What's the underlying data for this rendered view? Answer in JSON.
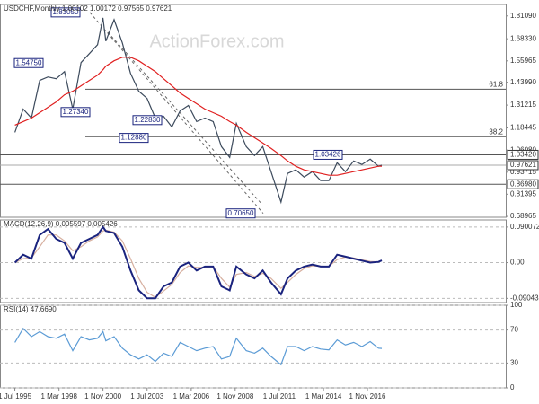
{
  "chart_data": [
    {
      "type": "line",
      "title": "USDCHF,Monthly  1.00102 1.00172 0.97565 0.97621",
      "watermark": "ActionForex.com",
      "x": [
        1995.5,
        1996,
        1996.5,
        1997,
        1997.5,
        1998,
        1998.5,
        1999,
        1999.5,
        2000,
        2000.5,
        2000.83,
        2001,
        2001.5,
        2002,
        2002.5,
        2003,
        2003.5,
        2004,
        2004.5,
        2005,
        2005.5,
        2006,
        2006.5,
        2007,
        2007.5,
        2008,
        2008.5,
        2008.9,
        2009.5,
        2010,
        2010.5,
        2011,
        2011.6,
        2012,
        2012.5,
        2013,
        2013.5,
        2014,
        2014.5,
        2015,
        2015.5,
        2016,
        2016.5,
        2017,
        2017.5,
        2017.7
      ],
      "xlim": [
        1994.6,
        2025.2
      ],
      "series": [
        {
          "color": "#3c4a5c",
          "values": [
            1.16,
            1.29,
            1.24,
            1.45,
            1.47,
            1.46,
            1.5,
            1.29,
            1.55,
            1.6,
            1.65,
            1.8,
            1.67,
            1.79,
            1.66,
            1.49,
            1.39,
            1.35,
            1.24,
            1.25,
            1.19,
            1.28,
            1.31,
            1.22,
            1.24,
            1.22,
            1.08,
            1.02,
            1.21,
            1.08,
            1.03,
            1.08,
            0.94,
            0.77,
            0.93,
            0.95,
            0.91,
            0.94,
            0.89,
            0.89,
            0.99,
            0.94,
            1.0,
            0.98,
            1.01,
            0.97,
            0.97621
          ]
        },
        {
          "color": "#e02020",
          "values": [
            1.2,
            1.22,
            1.24,
            1.27,
            1.3,
            1.33,
            1.37,
            1.39,
            1.42,
            1.45,
            1.48,
            1.51,
            1.53,
            1.56,
            1.58,
            1.58,
            1.56,
            1.53,
            1.5,
            1.46,
            1.42,
            1.38,
            1.35,
            1.32,
            1.29,
            1.27,
            1.25,
            1.22,
            1.2,
            1.16,
            1.13,
            1.1,
            1.07,
            1.03,
            1.0,
            0.97,
            0.95,
            0.94,
            0.93,
            0.92,
            0.92,
            0.93,
            0.94,
            0.95,
            0.96,
            0.97,
            0.97
          ]
        }
      ],
      "ylim": [
        0.685,
        1.875
      ],
      "yticks": [
        {
          "value": 1.8109,
          "label": "1.81090"
        },
        {
          "value": 1.6833,
          "label": "1.68330"
        },
        {
          "value": 1.55965,
          "label": "1.55965"
        },
        {
          "value": 1.4399,
          "label": "1.43990"
        },
        {
          "value": 1.31215,
          "label": "1.31215"
        },
        {
          "value": 1.18445,
          "label": "1.18445"
        },
        {
          "value": 1.0608,
          "label": "1.06080"
        },
        0.93715,
        0.81395,
        0.68965
      ],
      "levels": [
        {
          "value": 1.4011,
          "label": "61.8"
        },
        {
          "value": 1.1359,
          "label": "38.2"
        },
        {
          "value": 1.0342,
          "label": "1.03420"
        },
        {
          "value": 0.97621,
          "label": "0.97621"
        },
        {
          "value": 0.8698,
          "label": "0.86980"
        }
      ],
      "annotations": [
        {
          "value": 1.8305,
          "label": "1.83050"
        },
        {
          "value": 1.5475,
          "label": "1.54750"
        },
        {
          "value": 1.2734,
          "label": "1.27340"
        },
        {
          "value": 1.2283,
          "label": "1.22830"
        },
        {
          "value": 1.1288,
          "label": "1.12880"
        },
        {
          "value": 0.7065,
          "label": "0.70650"
        },
        {
          "value": 1.03426,
          "label": "1.03426"
        }
      ]
    },
    {
      "type": "line",
      "title": "MACD(12,26,9) 0.005597 0.005426",
      "x": [
        1995.5,
        1996,
        1996.5,
        1997,
        1997.5,
        1998,
        1998.5,
        1999,
        1999.5,
        2000,
        2000.5,
        2000.83,
        2001,
        2001.5,
        2002,
        2002.5,
        2003,
        2003.5,
        2004,
        2004.5,
        2005,
        2005.5,
        2006,
        2006.5,
        2007,
        2007.5,
        2008,
        2008.5,
        2008.9,
        2009.5,
        2010,
        2010.5,
        2011,
        2011.6,
        2012,
        2012.5,
        2013,
        2013.5,
        2014,
        2014.5,
        2015,
        2015.5,
        2016,
        2016.5,
        2017,
        2017.5,
        2017.7
      ],
      "xlim": [
        1994.6,
        2025.2
      ],
      "series": [
        {
          "color": "#d7b0a0",
          "values": [
            0.0,
            0.01,
            0.012,
            0.04,
            0.07,
            0.07,
            0.055,
            0.03,
            0.04,
            0.055,
            0.065,
            0.08,
            0.082,
            0.077,
            0.055,
            0.01,
            -0.04,
            -0.075,
            -0.088,
            -0.072,
            -0.055,
            -0.025,
            -0.008,
            -0.012,
            -0.012,
            -0.01,
            -0.04,
            -0.062,
            -0.03,
            -0.025,
            -0.035,
            -0.027,
            -0.04,
            -0.065,
            -0.05,
            -0.03,
            -0.015,
            -0.008,
            -0.009,
            -0.01,
            0.008,
            0.014,
            0.012,
            0.007,
            0.003,
            0.002,
            0.005426
          ]
        },
        {
          "color": "#1a237e",
          "values": [
            0.0,
            0.02,
            0.01,
            0.07,
            0.085,
            0.06,
            0.05,
            0.01,
            0.05,
            0.06,
            0.07,
            0.09,
            0.08,
            0.075,
            0.04,
            -0.02,
            -0.07,
            -0.09,
            -0.09,
            -0.06,
            -0.05,
            -0.01,
            0.0,
            -0.02,
            -0.01,
            -0.01,
            -0.06,
            -0.07,
            -0.01,
            -0.03,
            -0.04,
            -0.02,
            -0.05,
            -0.08,
            -0.04,
            -0.02,
            -0.01,
            -0.005,
            -0.01,
            -0.01,
            0.02,
            0.015,
            0.01,
            0.005,
            0.0,
            0.002,
            0.005597
          ]
        }
      ],
      "ylim": [
        -0.101,
        0.108
      ],
      "yticks": [
        0.090072,
        {
          "value": 0,
          "label": "0.00"
        },
        -0.090435
      ],
      "grid": true
    },
    {
      "type": "line",
      "title": "RSI(14) 47.6690",
      "x": [
        1995.5,
        1996,
        1996.5,
        1997,
        1997.5,
        1998,
        1998.5,
        1999,
        1999.5,
        2000,
        2000.5,
        2000.83,
        2001,
        2001.5,
        2002,
        2002.5,
        2003,
        2003.5,
        2004,
        2004.5,
        2005,
        2005.5,
        2006,
        2006.5,
        2007,
        2007.5,
        2008,
        2008.5,
        2008.9,
        2009.5,
        2010,
        2010.5,
        2011,
        2011.6,
        2012,
        2012.5,
        2013,
        2013.5,
        2014,
        2014.5,
        2015,
        2015.5,
        2016,
        2016.5,
        2017,
        2017.5,
        2017.7
      ],
      "xlim": [
        1994.6,
        2025.2
      ],
      "series": [
        {
          "color": "#5b9bd5",
          "values": [
            55,
            72,
            62,
            68,
            62,
            60,
            65,
            45,
            62,
            58,
            60,
            68,
            57,
            62,
            48,
            40,
            35,
            40,
            32,
            42,
            38,
            55,
            50,
            45,
            48,
            50,
            35,
            38,
            60,
            45,
            42,
            48,
            38,
            28,
            50,
            50,
            45,
            50,
            47,
            46,
            58,
            52,
            55,
            50,
            56,
            48,
            47.669
          ]
        }
      ],
      "ylim": [
        0,
        100
      ],
      "yticks": [
        100,
        70,
        30,
        0
      ],
      "grid": true,
      "xticks": [
        {
          "value": 1995.5,
          "label": "1 Jul 1995"
        },
        {
          "value": 1998.17,
          "label": "1 Mar 1998"
        },
        {
          "value": 2000.83,
          "label": "1 Nov 2000"
        },
        {
          "value": 2003.5,
          "label": "1 Jul 2003"
        },
        {
          "value": 2006.17,
          "label": "1 Mar 2006"
        },
        {
          "value": 2008.83,
          "label": "1 Nov 2008"
        },
        {
          "value": 2011.5,
          "label": "1 Jul 2011"
        },
        {
          "value": 2014.17,
          "label": "1 Mar 2014"
        },
        {
          "value": 2016.83,
          "label": "1 Nov 2016"
        }
      ]
    }
  ]
}
